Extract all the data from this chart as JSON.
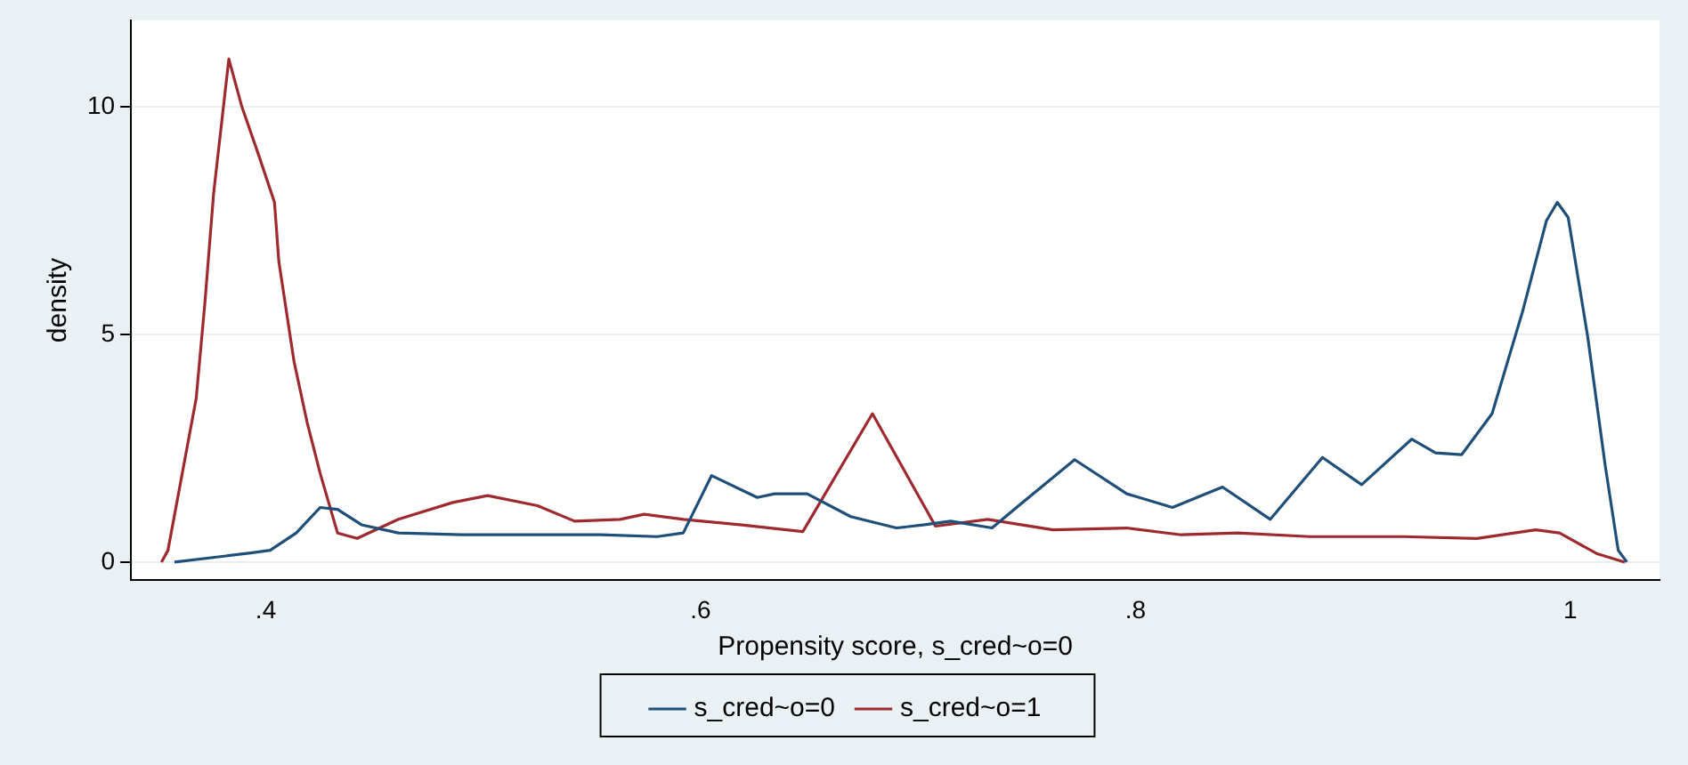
{
  "chart_data": {
    "type": "line",
    "xlabel": "Propensity score, s_cred~o=0",
    "ylabel": "density",
    "xlim": [
      0.338,
      1.041
    ],
    "ylim": [
      -0.4,
      11.9
    ],
    "xticks": [
      {
        "value": 0.4,
        "label": ".4"
      },
      {
        "value": 0.6,
        "label": ".6"
      },
      {
        "value": 0.8,
        "label": ".8"
      },
      {
        "value": 1,
        "label": "1"
      }
    ],
    "yticks": [
      0,
      5,
      10
    ],
    "grid": "y",
    "legend": "bottom",
    "marker": "none",
    "line_style": "solid",
    "series": [
      {
        "name": "s_cred~o=0",
        "color": "#1f4e79",
        "x": [
          0.358,
          0.393,
          0.402,
          0.414,
          0.425,
          0.433,
          0.444,
          0.461,
          0.491,
          0.525,
          0.554,
          0.58,
          0.592,
          0.605,
          0.626,
          0.634,
          0.649,
          0.669,
          0.69,
          0.703,
          0.715,
          0.734,
          0.747,
          0.772,
          0.796,
          0.817,
          0.84,
          0.862,
          0.886,
          0.904,
          0.927,
          0.938,
          0.95,
          0.964,
          0.978,
          0.989,
          0.994,
          0.999,
          1.008,
          1.016,
          1.022,
          1.026
        ],
        "values": [
          0,
          0.2,
          0.26,
          0.64,
          1.2,
          1.16,
          0.82,
          0.64,
          0.6,
          0.6,
          0.6,
          0.56,
          0.64,
          1.9,
          1.42,
          1.5,
          1.5,
          1.0,
          0.75,
          0.82,
          0.9,
          0.75,
          1.27,
          2.25,
          1.5,
          1.2,
          1.65,
          0.94,
          2.3,
          1.7,
          2.7,
          2.4,
          2.36,
          3.26,
          5.5,
          7.5,
          7.9,
          7.57,
          4.94,
          2.13,
          0.26,
          0
        ]
      },
      {
        "name": "s_cred~o=1",
        "color": "#9e2a2f",
        "x": [
          0.352,
          0.355,
          0.368,
          0.372,
          0.376,
          0.383,
          0.389,
          0.397,
          0.404,
          0.406,
          0.413,
          0.419,
          0.425,
          0.433,
          0.442,
          0.461,
          0.486,
          0.502,
          0.525,
          0.542,
          0.563,
          0.574,
          0.592,
          0.618,
          0.647,
          0.679,
          0.708,
          0.732,
          0.762,
          0.796,
          0.821,
          0.847,
          0.88,
          0.923,
          0.957,
          0.984,
          0.995,
          1.012,
          1.025
        ],
        "values": [
          0,
          0.26,
          3.6,
          5.7,
          8.1,
          11.05,
          10.0,
          8.9,
          7.9,
          6.6,
          4.4,
          3.07,
          1.95,
          0.64,
          0.52,
          0.94,
          1.31,
          1.46,
          1.24,
          0.9,
          0.94,
          1.05,
          0.94,
          0.82,
          0.67,
          3.26,
          0.79,
          0.94,
          0.71,
          0.75,
          0.6,
          0.64,
          0.56,
          0.56,
          0.52,
          0.71,
          0.64,
          0.19,
          0
        ]
      }
    ]
  }
}
